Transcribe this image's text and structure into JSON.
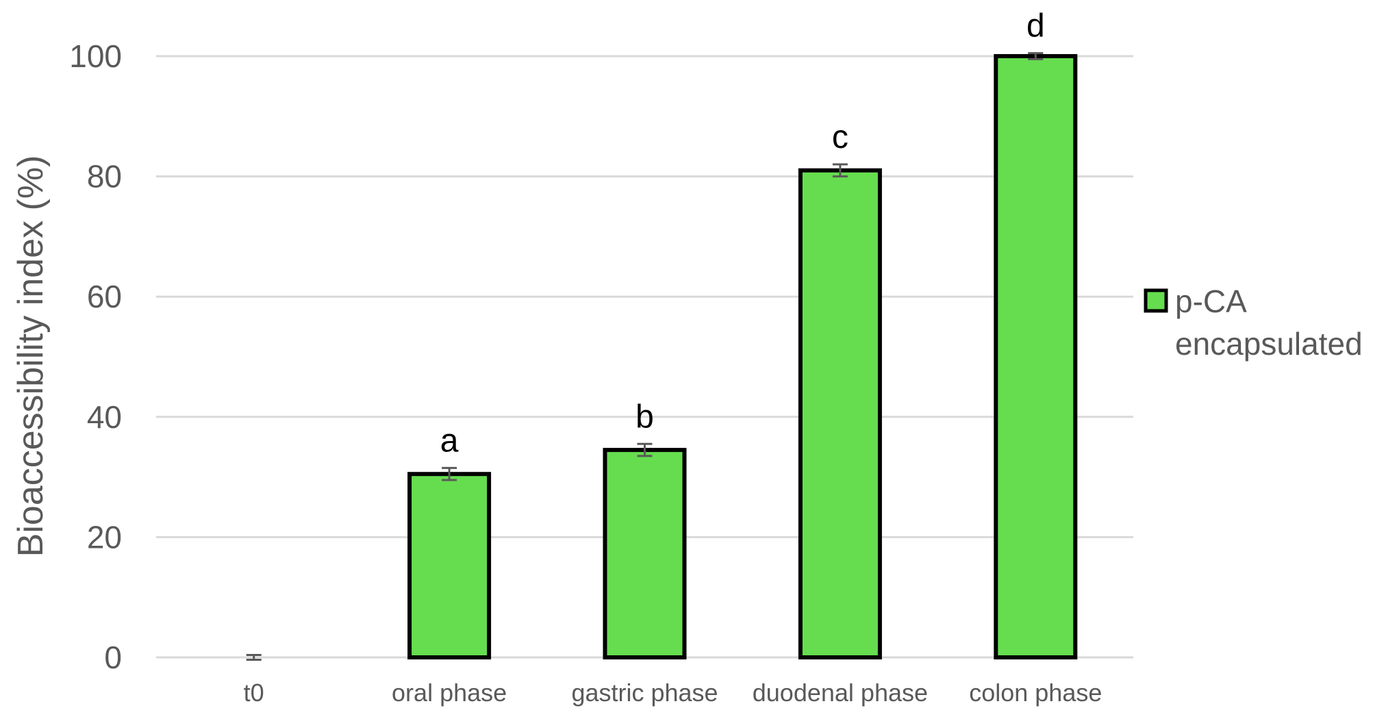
{
  "chart_data": {
    "type": "bar",
    "categories": [
      "t0",
      "oral phase",
      "gastric phase",
      "duodenal phase",
      "colon phase"
    ],
    "series": [
      {
        "name": "p-CA encapsulated",
        "values": [
          0,
          30.5,
          34.5,
          81,
          100
        ],
        "errors": [
          0.4,
          1.0,
          1.0,
          1.0,
          0.5
        ],
        "significance": [
          "",
          "a",
          "b",
          "c",
          "d"
        ]
      }
    ],
    "ylabel": "Bioaccessibility index (%)",
    "xlabel": "",
    "ylim": [
      0,
      100
    ],
    "yticks": [
      "0",
      "20",
      "40",
      "60",
      "80",
      "100"
    ],
    "legend": {
      "entries": [
        "p-CA encapsulated"
      ],
      "lines": [
        "p-CA",
        "encapsulated"
      ],
      "placement": "right"
    },
    "grid": true,
    "colors": {
      "bar_fill": "#66dd4f",
      "bar_edge": "#000000",
      "grid": "#d9d9d9",
      "error_bar": "#595959",
      "text": "#595959"
    }
  }
}
